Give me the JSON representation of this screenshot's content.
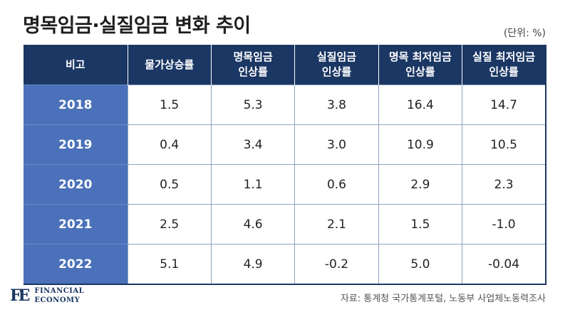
{
  "title": "명목임금·실질임금 변화 추이",
  "unit": "(단위: %)",
  "table": {
    "headers": [
      [
        "비고"
      ],
      [
        "물가상승률"
      ],
      [
        "명목임금",
        "인상률"
      ],
      [
        "실질임금",
        "인상률"
      ],
      [
        "명목 최저임금",
        "인상률"
      ],
      [
        "실질 최저임금",
        "인상률"
      ]
    ],
    "rows": [
      [
        "2018",
        "1.5",
        "5.3",
        "3.8",
        "16.4",
        "14.7"
      ],
      [
        "2019",
        "0.4",
        "3.4",
        "3.0",
        "10.9",
        "10.5"
      ],
      [
        "2020",
        "0.5",
        "1.1",
        "0.6",
        "2.9",
        "2.3"
      ],
      [
        "2021",
        "2.5",
        "4.6",
        "2.1",
        "1.5",
        "-1.0"
      ],
      [
        "2022",
        "5.1",
        "4.9",
        "-0.2",
        "5.0",
        "-0.04"
      ]
    ]
  },
  "logo": {
    "mark": "FE",
    "line1": "FINANCIAL",
    "line2": "ECONOMY"
  },
  "source": "자료: 통계청 국가통계포털, 노동부 사업체노동력조사"
}
